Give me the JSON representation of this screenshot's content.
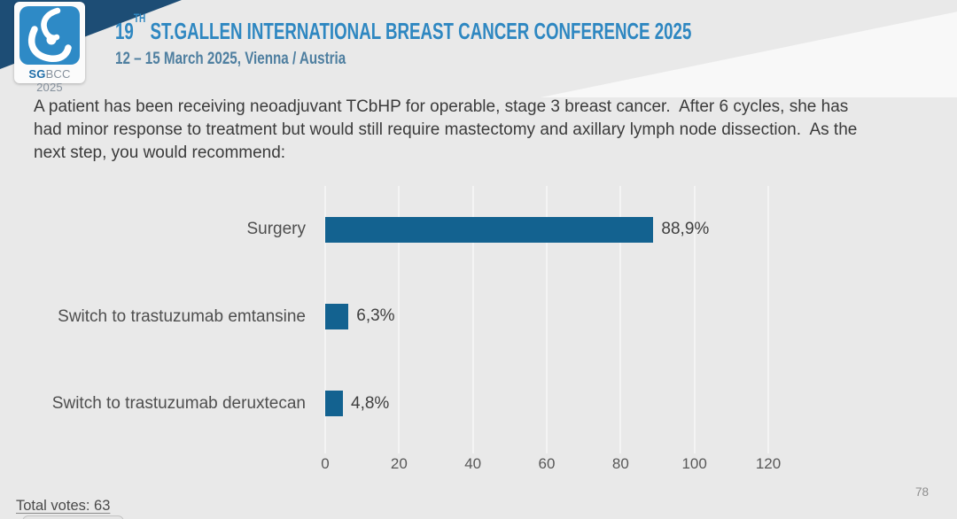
{
  "header": {
    "logo": {
      "sg": "SG",
      "rest": "BCC 2025"
    },
    "title_num": "19",
    "title_sup": "TH",
    "title_rest": " ST.GALLEN INTERNATIONAL BREAST CANCER CONFERENCE 2025",
    "subtitle": "12 – 15 March 2025, Vienna / Austria"
  },
  "question": "A patient has been receiving neoadjuvant TCbHP for operable, stage 3 breast cancer.  After 6 cycles, she has had minor response to treatment but would still require mastectomy and axillary lymph node dissection.  As the next step, you would recommend:",
  "chart_data": {
    "type": "bar",
    "orientation": "horizontal",
    "categories": [
      "Surgery",
      "Switch to trastuzumab emtansine",
      "Switch to trastuzumab deruxtecan"
    ],
    "values": [
      88.9,
      6.3,
      4.8
    ],
    "value_labels": [
      "88,9%",
      "6,3%",
      "4,8%"
    ],
    "title": "",
    "xlabel": "",
    "ylabel": "",
    "xlim": [
      0,
      120
    ],
    "xticks": [
      0,
      20,
      40,
      60,
      80,
      100,
      120
    ],
    "grid": true,
    "legend": false,
    "bar_color": "#136290"
  },
  "footer": {
    "total_votes": "Total votes: 63",
    "page_number": "78"
  },
  "colors": {
    "background": "#e9e9e9",
    "title_blue": "#2e87c1",
    "subtitle_blue": "#4f7fa0",
    "bar_blue": "#136290",
    "corner_navy": "#1d4d75",
    "logo_blue": "#2e8ac6"
  }
}
